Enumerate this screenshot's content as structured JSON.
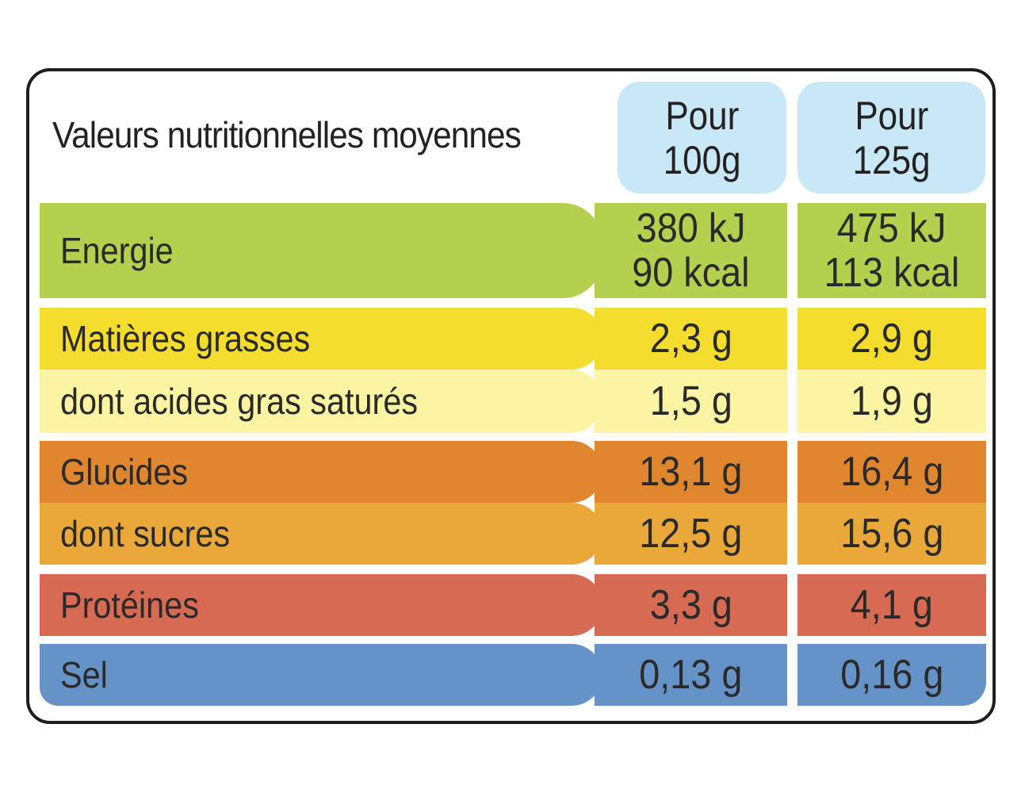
{
  "title": "Valeurs nutritionnelles moyennes",
  "columns": [
    {
      "line1": "Pour",
      "line2": "100g"
    },
    {
      "line1": "Pour",
      "line2": "125g"
    }
  ],
  "rows": [
    {
      "label": "Energie",
      "v1": [
        "380 kJ",
        "90 kcal"
      ],
      "v2": [
        "475 kJ",
        "113 kcal"
      ],
      "color": "#b5cf4f"
    },
    {
      "label": "Matières grasses",
      "v1": [
        "2,3 g"
      ],
      "v2": [
        "2,9 g"
      ],
      "color": "#f5dd2e"
    },
    {
      "label": "dont acides gras saturés",
      "v1": [
        "1,5 g"
      ],
      "v2": [
        "1,9 g"
      ],
      "color": "#fbf5a3"
    },
    {
      "label": "Glucides",
      "v1": [
        "13,1 g"
      ],
      "v2": [
        "16,4 g"
      ],
      "color": "#e0862f"
    },
    {
      "label": "dont sucres",
      "v1": [
        "12,5 g"
      ],
      "v2": [
        "15,6 g"
      ],
      "color": "#eaa83a"
    },
    {
      "label": "Protéines",
      "v1": [
        "3,3 g"
      ],
      "v2": [
        "4,1 g"
      ],
      "color": "#d76a53"
    },
    {
      "label": "Sel",
      "v1": [
        "0,13 g"
      ],
      "v2": [
        "0,16 g"
      ],
      "color": "#6593c8"
    }
  ],
  "colors": {
    "header_bg": "#c9e8f7",
    "border": "#1e1e1e",
    "text": "#2a2a2a"
  }
}
